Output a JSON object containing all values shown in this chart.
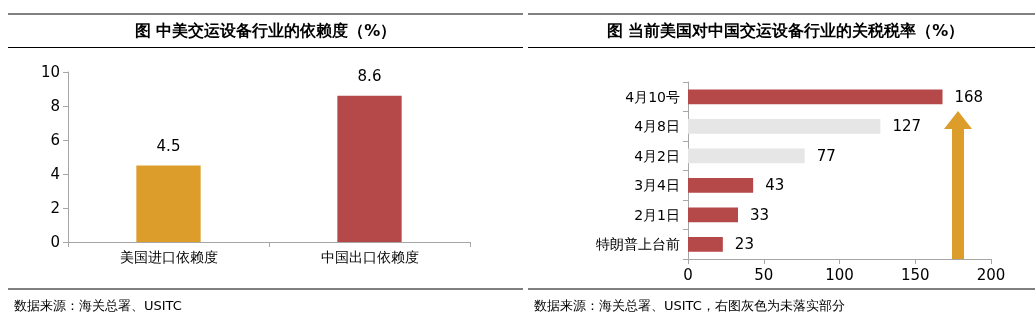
{
  "chart_data": [
    {
      "type": "bar",
      "title": "图  中美交运设备行业的依赖度（%）",
      "categories": [
        "美国进口依赖度",
        "中国出口依赖度"
      ],
      "values": [
        4.5,
        8.6
      ],
      "colors": [
        "#dc9d2a",
        "#b5494a"
      ],
      "ylim": [
        0,
        10
      ],
      "yticks": [
        0,
        2,
        4,
        6,
        8,
        10
      ],
      "grid": false,
      "data_labels": true,
      "annotations": [
        "数据来源：海关总署、USITC"
      ]
    },
    {
      "type": "bar",
      "orientation": "horizontal",
      "title": "图  当前美国对中国交运设备行业的关税税率（%）",
      "categories": [
        "4月10号",
        "4月8日",
        "4月2日",
        "3月4日",
        "2月1日",
        "特朗普上台前"
      ],
      "values": [
        168,
        127,
        77,
        43,
        33,
        23
      ],
      "colors": [
        "#b5494a",
        "#e6e6e6",
        "#e6e6e6",
        "#b5494a",
        "#b5494a",
        "#b5494a"
      ],
      "xlim": [
        0,
        200
      ],
      "xticks": [
        0,
        50,
        100,
        150,
        200
      ],
      "grid": false,
      "data_labels": true,
      "annotations": [
        "数据来源：海关总署、USITC，右图灰色为未落实部分"
      ]
    }
  ]
}
